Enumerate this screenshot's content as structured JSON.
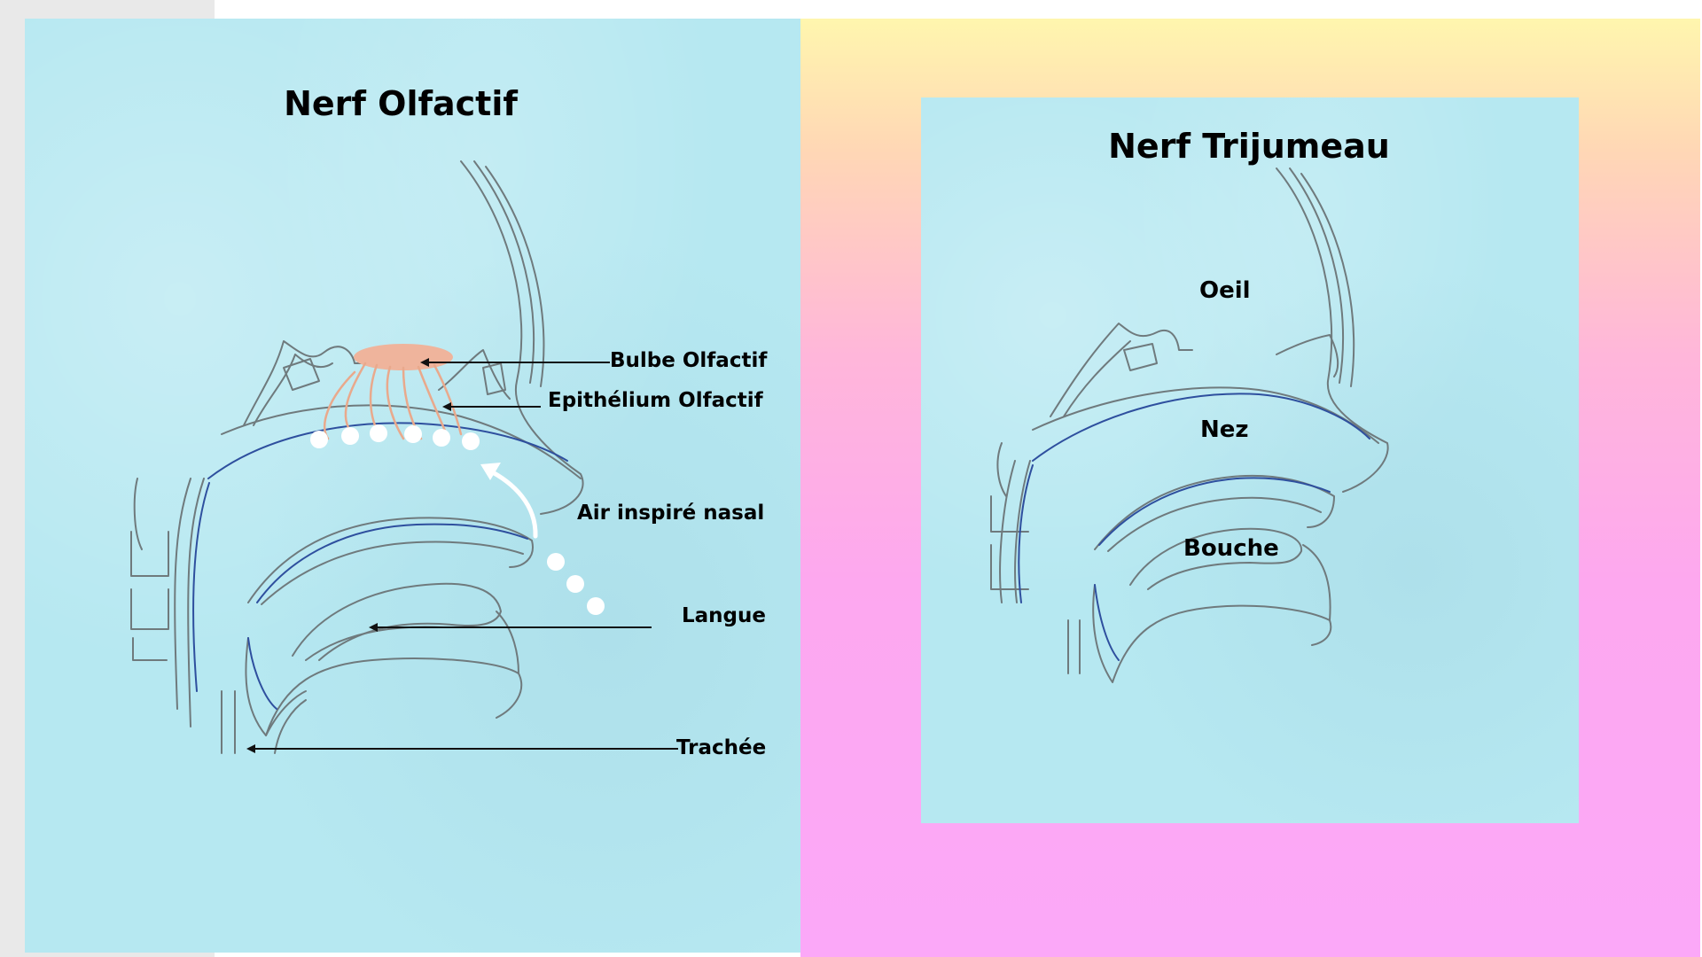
{
  "colors": {
    "paper": "#b6e8f1",
    "pencil": "#6f7a7d",
    "blue_line": "#2e4f9e",
    "bulb": "#efb49c",
    "gradient_top": "#fff6ae",
    "gradient_bottom": "#fba8f8"
  },
  "left_panel": {
    "title": "Nerf  Olfactif",
    "labels": {
      "bulbe": "Bulbe Olfactif",
      "epithelium": "Epithélium Olfactif",
      "air": "Air inspiré nasal",
      "langue": "Langue",
      "trachee": "Trachée"
    }
  },
  "right_panel": {
    "title": "Nerf Trijumeau",
    "labels": {
      "oeil": "Oeil",
      "nez": "Nez",
      "bouche": "Bouche"
    }
  }
}
